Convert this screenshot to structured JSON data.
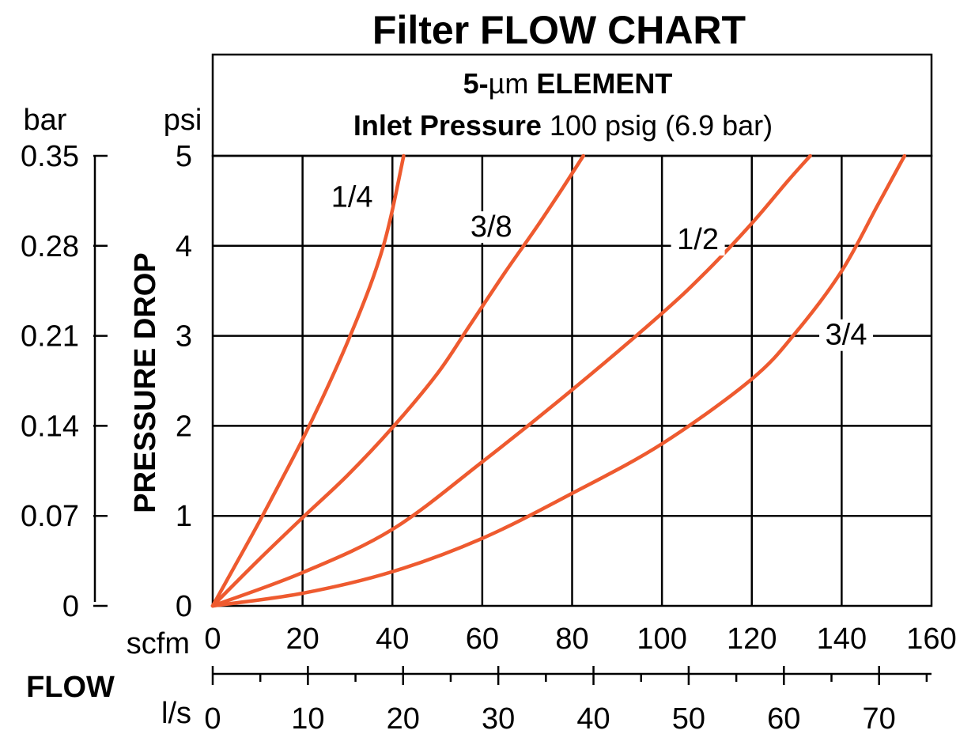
{
  "chart_data": {
    "type": "line",
    "title": "Filter FLOW CHART",
    "header_line1_bold_prefix": "5-",
    "header_line1_unit": "µm",
    "header_line1_bold_suffix": " ELEMENT",
    "header_line2_bold": "Inlet Pressure",
    "header_line2_normal": " 100 psig (6.9 bar)",
    "ylabel": "PRESSURE DROP",
    "ylabel_left_unit": "bar",
    "ylabel_right_unit": "psi",
    "xlabel": "FLOW",
    "xlabel_top_unit": "scfm",
    "xlabel_bottom_unit": "l/s",
    "ylim": [
      0,
      5
    ],
    "xlim": [
      0,
      160
    ],
    "grid": true,
    "psi_ticks": [
      0,
      1,
      2,
      3,
      4,
      5
    ],
    "psi_tick_labels": [
      "0",
      "1",
      "2",
      "3",
      "4",
      "5"
    ],
    "bar_tick_labels": [
      "0",
      "0.07",
      "0.14",
      "0.21",
      "0.28",
      "0.35"
    ],
    "scfm_ticks": [
      0,
      20,
      40,
      60,
      80,
      100,
      120,
      140,
      160
    ],
    "scfm_tick_labels": [
      "0",
      "20",
      "40",
      "60",
      "80",
      "100",
      "120",
      "140",
      "160"
    ],
    "ls_ticks": [
      0,
      10,
      20,
      30,
      40,
      50,
      60,
      70
    ],
    "ls_tick_labels": [
      "0",
      "10",
      "20",
      "30",
      "40",
      "50",
      "60",
      "70"
    ],
    "series_color": "#ee5a2f",
    "series": [
      {
        "name": "1/4",
        "x": [
          0,
          5,
          10,
          15,
          20,
          25,
          30,
          35,
          38,
          40,
          42.5
        ],
        "y": [
          0,
          0.45,
          0.9,
          1.37,
          1.85,
          2.37,
          2.93,
          3.55,
          4.0,
          4.4,
          5.0
        ]
      },
      {
        "name": "3/8",
        "x": [
          0,
          10,
          20,
          30,
          40,
          50,
          57,
          65,
          72,
          78,
          82.5
        ],
        "y": [
          0,
          0.5,
          0.98,
          1.45,
          1.98,
          2.58,
          3.1,
          3.7,
          4.2,
          4.65,
          5.0
        ]
      },
      {
        "name": "1/2",
        "x": [
          0,
          20,
          40,
          60,
          80,
          100,
          110,
          120,
          128,
          133
        ],
        "y": [
          0,
          0.37,
          0.85,
          1.6,
          2.4,
          3.25,
          3.72,
          4.25,
          4.72,
          5.0
        ]
      },
      {
        "name": "3/4",
        "x": [
          0,
          20,
          40,
          60,
          80,
          100,
          120,
          130,
          140,
          148,
          154
        ],
        "y": [
          0,
          0.14,
          0.38,
          0.75,
          1.25,
          1.8,
          2.52,
          3.05,
          3.72,
          4.45,
          5.0
        ]
      }
    ],
    "series_labels": [
      {
        "text": "1/4",
        "x": 31,
        "y": 4.45
      },
      {
        "text": "3/8",
        "x": 62,
        "y": 4.12
      },
      {
        "text": "1/2",
        "x": 108,
        "y": 3.98
      },
      {
        "text": "3/4",
        "x": 141,
        "y": 2.92
      }
    ]
  }
}
